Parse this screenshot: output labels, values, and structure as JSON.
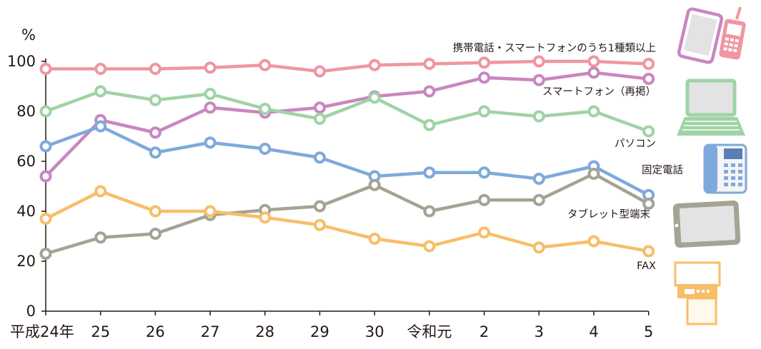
{
  "chart_data": {
    "type": "line",
    "ylabel": "%",
    "ylim": [
      0,
      100
    ],
    "yticks": [
      0,
      20,
      40,
      60,
      80,
      100
    ],
    "grid": false,
    "categories": [
      "平成24年",
      "25",
      "26",
      "27",
      "28",
      "29",
      "30",
      "令和元",
      "2",
      "3",
      "4",
      "5"
    ],
    "series": [
      {
        "name": "携帯電話・スマートフォンのうち1種類以上",
        "color": "#ef96a0",
        "values": [
          97,
          97,
          97,
          97.5,
          98.5,
          96,
          98.5,
          99,
          99.5,
          100,
          100,
          99
        ]
      },
      {
        "name": "スマートフォン（再掲）",
        "color": "#c887c0",
        "values": [
          54,
          76.5,
          71.5,
          81.5,
          79.5,
          81.5,
          86,
          88,
          93.5,
          92.5,
          95.5,
          93
        ]
      },
      {
        "name": "パソコン",
        "color": "#9fd3a5",
        "values": [
          80,
          88,
          84.5,
          87,
          81,
          77,
          85.5,
          74.5,
          80,
          78,
          80,
          72
        ]
      },
      {
        "name": "固定電話",
        "color": "#7ea9dc",
        "values": [
          66,
          74,
          63.5,
          67.5,
          65,
          61.5,
          54,
          55.5,
          55.5,
          53,
          58,
          46.5
        ]
      },
      {
        "name": "タブレット型端末",
        "color": "#a4a394",
        "values": [
          23,
          29.5,
          31,
          38.5,
          40.5,
          42,
          50.5,
          40,
          44.5,
          44.5,
          55,
          43
        ]
      },
      {
        "name": "FAX",
        "color": "#f7be68",
        "values": [
          37,
          48,
          40,
          40,
          37.5,
          34.5,
          29,
          26,
          31.5,
          25.5,
          28,
          24
        ]
      }
    ]
  },
  "icons": [
    "smartphone-and-feature-phone-icon",
    "laptop-icon",
    "landline-phone-icon",
    "tablet-icon",
    "fax-machine-icon"
  ]
}
